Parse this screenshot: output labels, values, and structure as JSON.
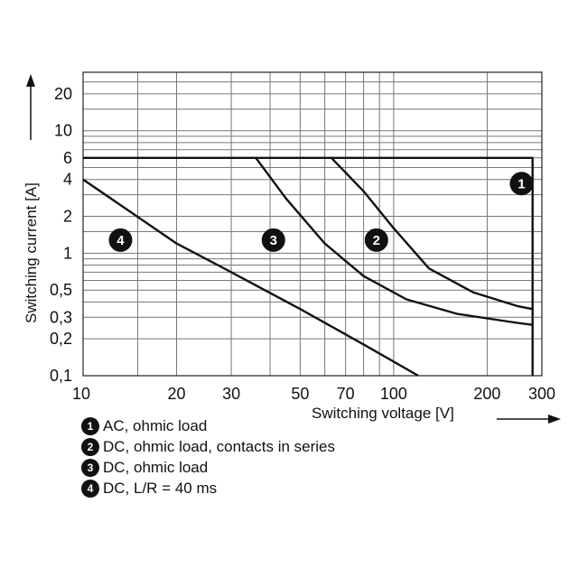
{
  "chart_data": {
    "type": "line",
    "title": "",
    "xlabel": "Switching voltage [V]",
    "ylabel": "Switching current [A]",
    "x_scale": "log",
    "y_scale": "log",
    "xlim": [
      10,
      300
    ],
    "ylim": [
      0.1,
      30
    ],
    "grid": true,
    "x_ticks": [
      10,
      20,
      30,
      50,
      70,
      100,
      200,
      300
    ],
    "x_tick_labels": [
      "10",
      "20",
      "30",
      "50",
      "70",
      "100",
      "200",
      "300"
    ],
    "y_ticks": [
      0.1,
      0.2,
      0.3,
      0.5,
      1,
      2,
      4,
      6,
      10,
      20
    ],
    "y_tick_labels": [
      "0,1",
      "0,2",
      "0,3",
      "0,5",
      "1",
      "2",
      "4",
      "6",
      "10",
      "20"
    ],
    "series": [
      {
        "badge": "1",
        "x": [
          10,
          280,
          280
        ],
        "y": [
          6,
          6,
          0.1
        ]
      },
      {
        "badge": "2",
        "x": [
          63,
          80,
          100,
          130,
          180,
          250,
          280
        ],
        "y": [
          6,
          3.2,
          1.6,
          0.75,
          0.48,
          0.37,
          0.35
        ]
      },
      {
        "badge": "3",
        "x": [
          36,
          45,
          60,
          80,
          110,
          160,
          250,
          280
        ],
        "y": [
          6,
          2.8,
          1.2,
          0.65,
          0.42,
          0.32,
          0.27,
          0.26
        ]
      },
      {
        "badge": "4",
        "x": [
          10,
          20,
          30,
          50,
          80,
          120
        ],
        "y": [
          4,
          1.2,
          0.7,
          0.35,
          0.18,
          0.1
        ]
      }
    ],
    "badges": [
      {
        "label": "1",
        "x": 258,
        "y": 3.7
      },
      {
        "label": "2",
        "x": 88,
        "y": 1.28
      },
      {
        "label": "3",
        "x": 41,
        "y": 1.28
      },
      {
        "label": "4",
        "x": 13.2,
        "y": 1.28
      }
    ]
  },
  "legend": [
    {
      "badge": "1",
      "text": "AC, ohmic load"
    },
    {
      "badge": "2",
      "text": "DC, ohmic load, contacts in series"
    },
    {
      "badge": "3",
      "text": "DC, ohmic load"
    },
    {
      "badge": "4",
      "text": "DC, L/R = 40 ms"
    }
  ]
}
